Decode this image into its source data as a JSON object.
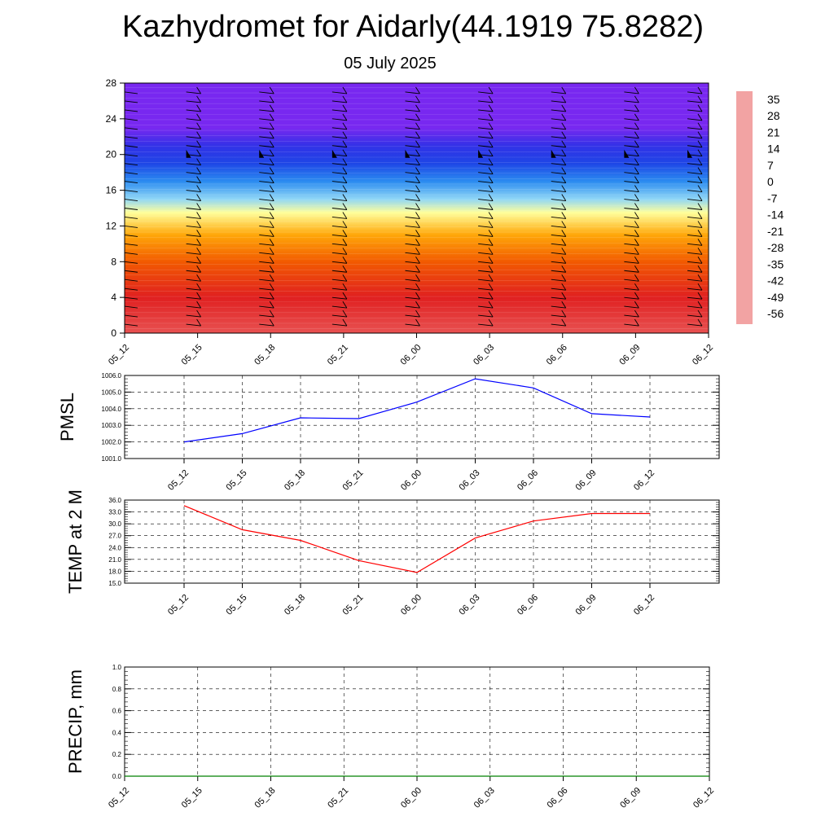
{
  "header": {
    "title": "Kazhydromet for Aidarly(44.1919 75.8282)",
    "subtitle": "05 July 2025"
  },
  "chart_data": [
    {
      "type": "heatmap",
      "name_hint": "temperature-wind-cross-section",
      "x_ticks": [
        "05_12",
        "05_15",
        "05_18",
        "05_21",
        "06_00",
        "06_03",
        "06_06",
        "06_09",
        "06_12"
      ],
      "y_ticks": [
        0,
        4,
        8,
        12,
        16,
        20,
        24,
        28
      ],
      "ylim": [
        0,
        28
      ],
      "colorbar_labels": [
        "35",
        "28",
        "21",
        "14",
        "7",
        "0",
        "-7",
        "-14",
        "-21",
        "-28",
        "-35",
        "-42",
        "-49",
        "-56"
      ],
      "color_stops": [
        {
          "value": 35,
          "color": "#f2a3a3"
        },
        {
          "value": 28,
          "color": "#e43030"
        },
        {
          "value": 21,
          "color": "#dd1414"
        },
        {
          "value": 14,
          "color": "#f25a00"
        },
        {
          "value": 7,
          "color": "#ff9600"
        },
        {
          "value": 0,
          "color": "#ffd21e"
        },
        {
          "value": -7,
          "color": "#ffff9c"
        },
        {
          "value": -14,
          "color": "#e6f5fa"
        },
        {
          "value": -21,
          "color": "#82d2f5"
        },
        {
          "value": -28,
          "color": "#3ca5f0"
        },
        {
          "value": -35,
          "color": "#1e78f0"
        },
        {
          "value": -42,
          "color": "#1e46e6"
        },
        {
          "value": -49,
          "color": "#2832e6"
        },
        {
          "value": -56,
          "color": "#7828f0"
        }
      ],
      "profile": [
        {
          "height": 0,
          "temp": 30
        },
        {
          "height": 4,
          "temp": 24
        },
        {
          "height": 8,
          "temp": 14
        },
        {
          "height": 11,
          "temp": 5
        },
        {
          "height": 13.5,
          "temp": -7
        },
        {
          "height": 15,
          "temp": -20
        },
        {
          "height": 17,
          "temp": -32
        },
        {
          "height": 19,
          "temp": -42
        },
        {
          "height": 21,
          "temp": -50
        },
        {
          "height": 23,
          "temp": -58
        },
        {
          "height": 28,
          "temp": -58
        }
      ]
    },
    {
      "type": "line",
      "ylabel": "PMSL",
      "x": [
        "05_12",
        "05_15",
        "05_18",
        "05_21",
        "06_00",
        "06_03",
        "06_06",
        "06_09",
        "06_12"
      ],
      "values": [
        1002.0,
        1002.5,
        1003.45,
        1003.4,
        1004.4,
        1005.8,
        1005.25,
        1003.7,
        1003.5
      ],
      "ylim": [
        1001.0,
        1006.0
      ],
      "y_ticks": [
        "1001.0",
        "1002.0",
        "1003.0",
        "1004.0",
        "1005.0",
        "1006.0"
      ],
      "color": "#0000ff",
      "grid": true
    },
    {
      "type": "line",
      "ylabel": "TEMP at 2 M",
      "x": [
        "05_12",
        "05_15",
        "05_18",
        "05_21",
        "06_00",
        "06_03",
        "06_06",
        "06_09",
        "06_12"
      ],
      "values": [
        34.6,
        28.5,
        25.8,
        20.7,
        17.7,
        26.4,
        30.7,
        32.6,
        32.6
      ],
      "ylim": [
        15.0,
        36.0
      ],
      "y_ticks": [
        "15.0",
        "18.0",
        "21.0",
        "24.0",
        "27.0",
        "30.0",
        "33.0",
        "36.0"
      ],
      "color": "#ff0000",
      "grid": true
    },
    {
      "type": "line",
      "ylabel": "PRECIP, mm",
      "x": [
        "05_12",
        "05_15",
        "05_18",
        "05_21",
        "06_00",
        "06_03",
        "06_06",
        "06_09",
        "06_12"
      ],
      "values": [
        0,
        0,
        0,
        0,
        0,
        0,
        0,
        0,
        0
      ],
      "ylim": [
        0.0,
        1.0
      ],
      "y_ticks": [
        "0.0",
        "0.2",
        "0.4",
        "0.6",
        "0.8",
        "1.0"
      ],
      "color": "#008000",
      "grid": true
    }
  ]
}
